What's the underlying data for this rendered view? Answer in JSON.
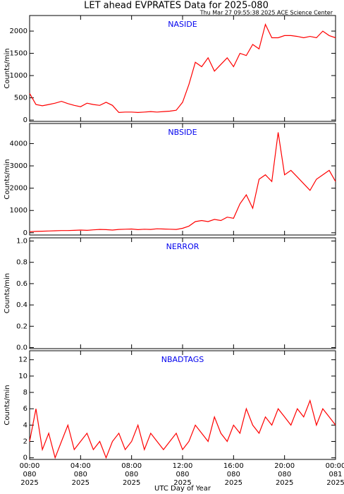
{
  "chart_data": [
    {
      "type": "line",
      "title": "LET ahead EVPRATES Data for 2025-080",
      "subtitle": "Thu Mar 27 09:55:38 2025 ACE Science Center",
      "ylabel": "Counts/min",
      "xlim": [
        0,
        24
      ],
      "ylim": [
        -30,
        2350
      ],
      "yticks": [
        0,
        500,
        1000,
        1500,
        2000
      ],
      "x": [
        0,
        0.5,
        1,
        1.5,
        2,
        2.5,
        3,
        3.5,
        4,
        4.5,
        5,
        5.5,
        6,
        6.5,
        7,
        7.5,
        8,
        8.5,
        9,
        9.5,
        10,
        10.5,
        11,
        11.5,
        12,
        12.5,
        13,
        13.5,
        14,
        14.5,
        15,
        15.5,
        16,
        16.5,
        17,
        17.5,
        18,
        18.5,
        19,
        19.5,
        20,
        20.5,
        21,
        21.5,
        22,
        22.5,
        23,
        23.5,
        24
      ],
      "series": [
        {
          "name": "NASIDE",
          "color": "#ff0000",
          "values": [
            600,
            350,
            320,
            350,
            380,
            420,
            370,
            330,
            300,
            380,
            350,
            330,
            400,
            330,
            170,
            180,
            180,
            170,
            180,
            190,
            180,
            190,
            200,
            220,
            400,
            800,
            1300,
            1200,
            1400,
            1100,
            1250,
            1400,
            1200,
            1500,
            1450,
            1700,
            1600,
            2150,
            1850,
            1850,
            1900,
            1900,
            1880,
            1850,
            1880,
            1850,
            2000,
            1900,
            1850
          ]
        }
      ]
    },
    {
      "type": "line",
      "ylabel": "Counts/min",
      "xlim": [
        0,
        24
      ],
      "ylim": [
        -100,
        4900
      ],
      "yticks": [
        0,
        1000,
        2000,
        3000,
        4000
      ],
      "x": [
        0,
        0.5,
        1,
        1.5,
        2,
        2.5,
        3,
        3.5,
        4,
        4.5,
        5,
        5.5,
        6,
        6.5,
        7,
        7.5,
        8,
        8.5,
        9,
        9.5,
        10,
        10.5,
        11,
        11.5,
        12,
        12.5,
        13,
        13.5,
        14,
        14.5,
        15,
        15.5,
        16,
        16.5,
        17,
        17.5,
        18,
        18.5,
        19,
        19.5,
        20,
        20.5,
        21,
        21.5,
        22,
        22.5,
        23,
        23.5,
        24
      ],
      "series": [
        {
          "name": "NBSIDE",
          "color": "#ff0000",
          "values": [
            50,
            60,
            70,
            80,
            90,
            100,
            100,
            110,
            120,
            110,
            130,
            150,
            140,
            120,
            150,
            160,
            170,
            140,
            160,
            150,
            180,
            170,
            160,
            150,
            200,
            300,
            500,
            550,
            500,
            600,
            550,
            700,
            650,
            1300,
            1700,
            1100,
            2400,
            2600,
            2300,
            4500,
            2600,
            2800,
            2500,
            2200,
            1900,
            2400,
            2600,
            2800,
            2300
          ]
        }
      ]
    },
    {
      "type": "line",
      "ylabel": "Counts/min",
      "xlim": [
        0,
        24
      ],
      "ylim": [
        -0.01,
        1.03
      ],
      "yticks": [
        {
          "value": 0,
          "label": "0.0"
        },
        0.2,
        0.4,
        0.6,
        0.8,
        {
          "value": 1,
          "label": "1.0"
        }
      ],
      "series": [
        {
          "name": "NERROR",
          "color": "#ff0000",
          "values": []
        }
      ]
    },
    {
      "type": "line",
      "ylabel": "Counts/min",
      "xlabel": "UTC Day of Year",
      "xlim": [
        0,
        24
      ],
      "ylim": [
        -0.2,
        13.1
      ],
      "yticks": [
        0,
        2,
        4,
        6,
        8,
        10,
        12
      ],
      "xticks": [
        {
          "value": 0,
          "label": "00:00"
        },
        {
          "value": 4,
          "label": "04:00"
        },
        {
          "value": 8,
          "label": "08:00"
        },
        {
          "value": 12,
          "label": "12:00"
        },
        {
          "value": 16,
          "label": "16:00"
        },
        {
          "value": 20,
          "label": "20:00"
        },
        {
          "value": 24,
          "label": "00:00"
        }
      ],
      "tick_days": [
        "080",
        "080",
        "080",
        "080",
        "080",
        "080",
        "081"
      ],
      "tick_years": [
        "2025",
        "2025",
        "2025",
        "2025",
        "2025",
        "2025",
        "2025"
      ],
      "x": [
        0,
        0.5,
        1,
        1.5,
        2,
        2.5,
        3,
        3.5,
        4,
        4.5,
        5,
        5.5,
        6,
        6.5,
        7,
        7.5,
        8,
        8.5,
        9,
        9.5,
        10,
        10.5,
        11,
        11.5,
        12,
        12.5,
        13,
        13.5,
        14,
        14.5,
        15,
        15.5,
        16,
        16.5,
        17,
        17.5,
        18,
        18.5,
        19,
        19.5,
        20,
        20.5,
        21,
        21.5,
        22,
        22.5,
        23,
        23.5,
        24
      ],
      "series": [
        {
          "name": "NBADTAGS",
          "color": "#ff0000",
          "values": [
            2,
            6,
            1,
            3,
            0,
            2,
            4,
            1,
            2,
            3,
            1,
            2,
            0,
            2,
            3,
            1,
            2,
            4,
            1,
            3,
            2,
            1,
            2,
            3,
            1,
            2,
            4,
            3,
            2,
            5,
            3,
            2,
            4,
            3,
            6,
            4,
            3,
            5,
            4,
            6,
            5,
            4,
            6,
            5,
            7,
            4,
            6,
            5,
            4
          ]
        }
      ]
    }
  ]
}
